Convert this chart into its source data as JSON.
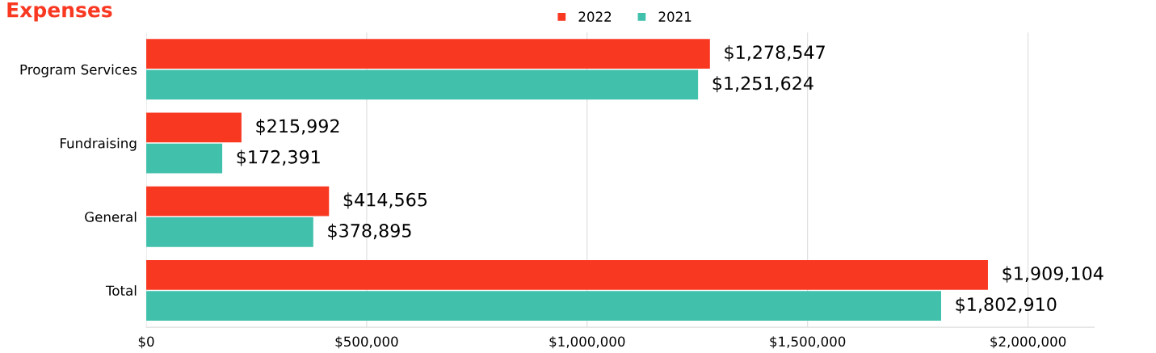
{
  "chart_data": {
    "type": "bar",
    "orientation": "horizontal",
    "title": "Expenses",
    "categories": [
      "Program Services",
      "Fundraising",
      "General",
      "Total"
    ],
    "series": [
      {
        "name": "2022",
        "color": "#f93822",
        "values": [
          1278547,
          215992,
          414565,
          1909104
        ],
        "value_labels": [
          "$1,278,547",
          "$215,992",
          "$414,565",
          "$1,909,104"
        ]
      },
      {
        "name": "2021",
        "color": "#41c1ac",
        "values": [
          1251624,
          172391,
          378895,
          1802910
        ],
        "value_labels": [
          "$1,251,624",
          "$172,391",
          "$378,895",
          "$1,802,910"
        ]
      }
    ],
    "xlim": [
      0,
      2150000
    ],
    "xticks": [
      {
        "value": 0,
        "label": "$0"
      },
      {
        "value": 500000,
        "label": "$500,000"
      },
      {
        "value": 1000000,
        "label": "$1,000,000"
      },
      {
        "value": 1500000,
        "label": "$1,500,000"
      },
      {
        "value": 2000000,
        "label": "$2,000,000"
      }
    ],
    "grid": "x",
    "legend": "top"
  }
}
